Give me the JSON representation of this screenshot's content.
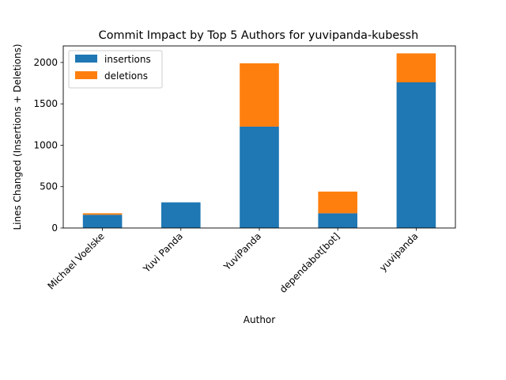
{
  "chart_data": {
    "type": "bar",
    "stacked": true,
    "title": "Commit Impact by Top 5 Authors for yuvipanda-kubessh",
    "xlabel": "Author",
    "ylabel": "Lines Changed (Insertions + Deletions)",
    "categories": [
      "Michael Voelske",
      "Yuvi Panda",
      "YuviPanda",
      "dependabot[bot]",
      "yuvipanda"
    ],
    "series": [
      {
        "name": "insertions",
        "color": "#1f77b4",
        "values": [
          160,
          310,
          1225,
          178,
          1760
        ]
      },
      {
        "name": "deletions",
        "color": "#ff7f0e",
        "values": [
          18,
          0,
          765,
          262,
          350
        ]
      }
    ],
    "ylim": [
      0,
      2200
    ],
    "yticks": [
      0,
      500,
      1000,
      1500,
      2000
    ],
    "grid": false,
    "legend_position": "top-left"
  }
}
